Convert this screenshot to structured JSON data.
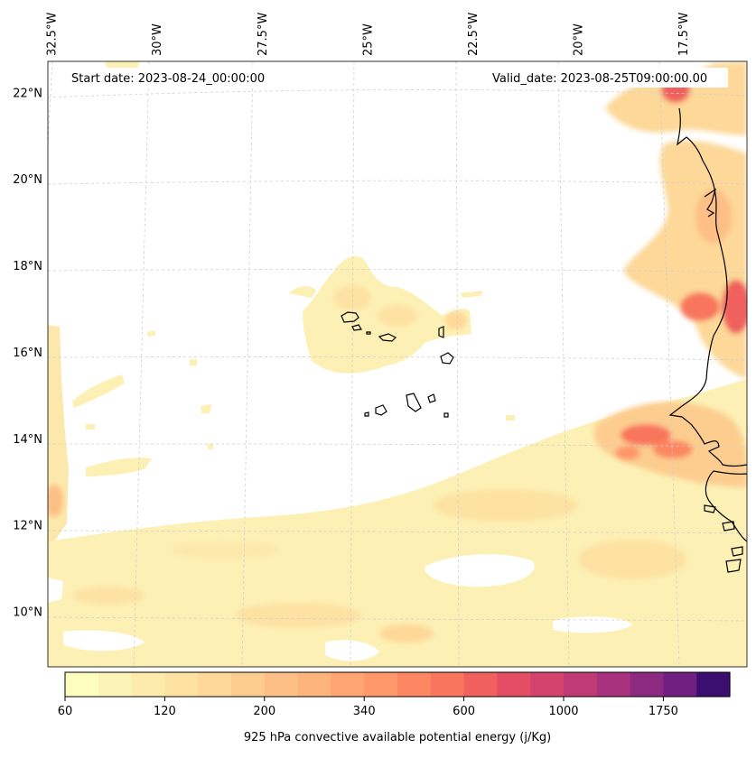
{
  "map": {
    "start_date_text": "Start date: 2023-08-24_00:00:00",
    "valid_date_text": "Valid_date: 2023-08-25T09:00:00.00",
    "variable": "925 hPa convective available potential energy",
    "units": "j/Kg",
    "extent": {
      "lon_min": -32.6,
      "lon_max": -16.0,
      "lat_min": 8.8,
      "lat_max": 22.8
    },
    "lon_tick_labels": [
      {
        "lon": -32.5,
        "label": "32.5°W"
      },
      {
        "lon": -30.0,
        "label": "30°W"
      },
      {
        "lon": -27.5,
        "label": "27.5°W"
      },
      {
        "lon": -25.0,
        "label": "25°W"
      },
      {
        "lon": -22.5,
        "label": "22.5°W"
      },
      {
        "lon": -20.0,
        "label": "20°W"
      },
      {
        "lon": -17.5,
        "label": "17.5°W"
      }
    ],
    "lat_tick_labels": [
      {
        "lat": 22,
        "label": "22°N"
      },
      {
        "lat": 20,
        "label": "20°N"
      },
      {
        "lat": 18,
        "label": "18°N"
      },
      {
        "lat": 16,
        "label": "16°N"
      },
      {
        "lat": 14,
        "label": "14°N"
      },
      {
        "lat": 12,
        "label": "12°N"
      },
      {
        "lat": 10,
        "label": "10°N"
      }
    ],
    "gridlines": true,
    "features": [
      "West African coastline",
      "Cape Verde islands"
    ]
  },
  "colorbar": {
    "label": "925 hPa convective available potential energy (j/Kg)",
    "levels": [
      60,
      80,
      100,
      120,
      150,
      175,
      200,
      240,
      280,
      340,
      400,
      480,
      600,
      700,
      800,
      1000,
      1200,
      1400,
      1750,
      2000,
      2500
    ],
    "tick_labels": [
      "60",
      "120",
      "200",
      "340",
      "600",
      "1000",
      "1750"
    ],
    "tick_level_index": [
      0,
      3,
      6,
      9,
      12,
      15,
      18
    ],
    "colors": [
      "#fcfdbf",
      "#fcf4b6",
      "#fdebac",
      "#fde2a2",
      "#fdd898",
      "#fdcd90",
      "#fdbf85",
      "#fdb37c",
      "#fea572",
      "#fe976a",
      "#fc8762",
      "#f8765c",
      "#f0605d",
      "#e34e65",
      "#d3436e",
      "#c03a76",
      "#a8327d",
      "#8c2981",
      "#711f81",
      "#3b0f70"
    ]
  }
}
